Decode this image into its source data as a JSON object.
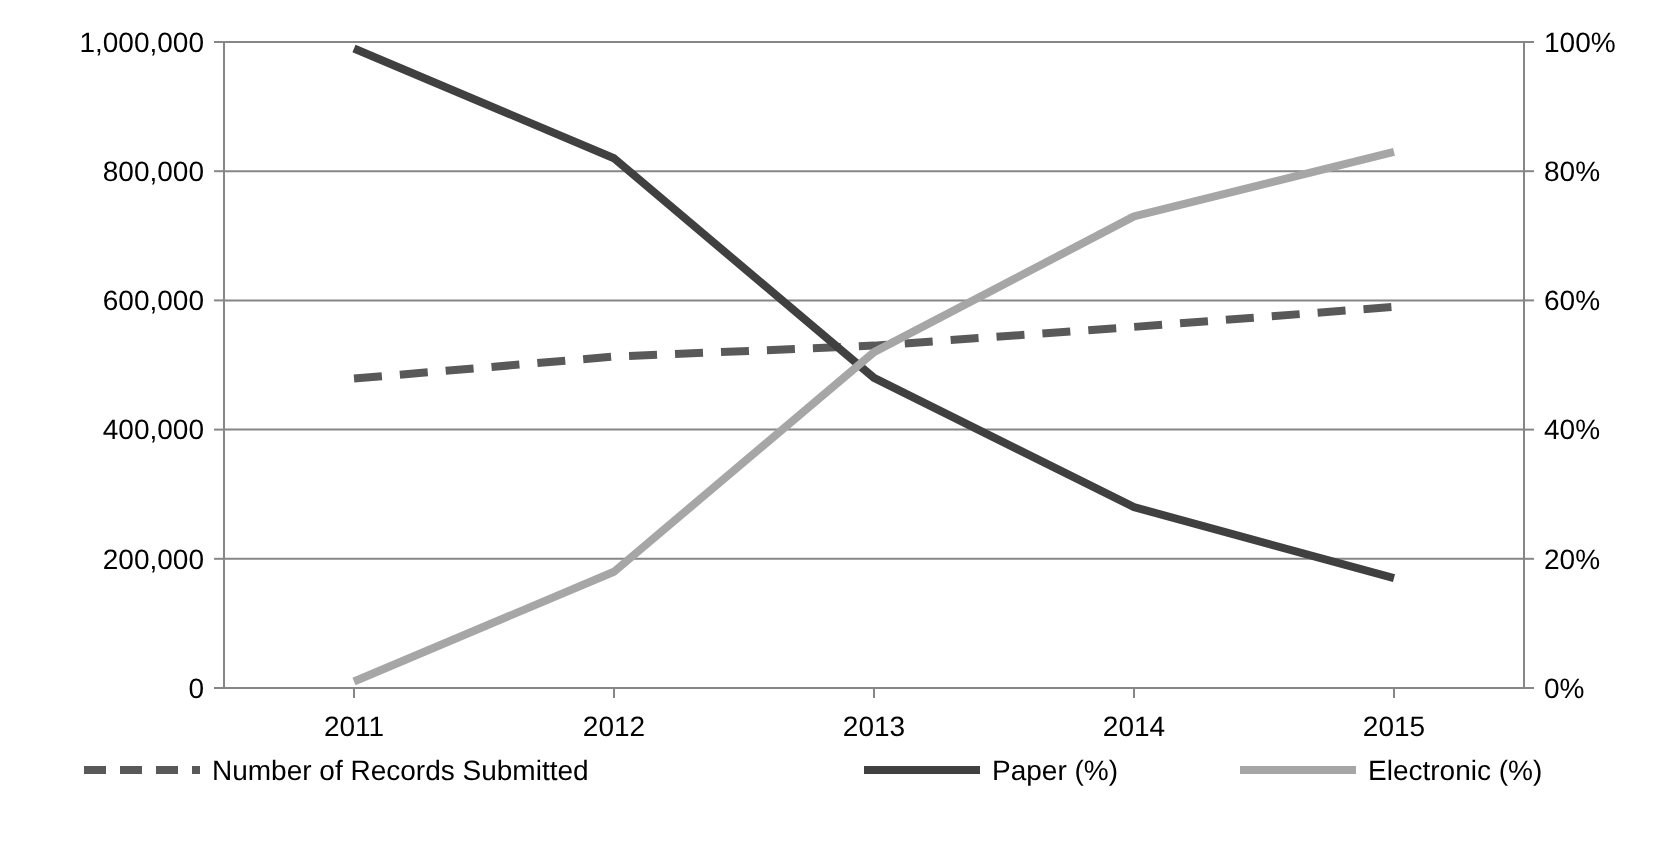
{
  "chart_data": {
    "type": "line",
    "categories": [
      "2011",
      "2012",
      "2013",
      "2014",
      "2015"
    ],
    "series": [
      {
        "name": "Number of Records Submitted",
        "color": "#595959",
        "line_style": "dashed",
        "values": [
          479000,
          513000,
          530000,
          559000,
          590000
        ]
      },
      {
        "name": "Paper (%)",
        "color": "#404040",
        "axis": "y2",
        "values": [
          99,
          82,
          48,
          28,
          17
        ]
      },
      {
        "name": "Electronic (%)",
        "color": "#a6a6a6",
        "axis": "y2",
        "values": [
          1,
          18,
          52,
          73,
          83
        ]
      }
    ],
    "ylim": [
      0,
      1000000
    ],
    "yticks": [
      {
        "value": 0,
        "label": "0"
      },
      {
        "value": 200000,
        "label": "200,000"
      },
      {
        "value": 400000,
        "label": "400,000"
      },
      {
        "value": 600000,
        "label": "600,000"
      },
      {
        "value": 800000,
        "label": "800,000"
      },
      {
        "value": 1000000,
        "label": "1,000,000"
      }
    ],
    "y2lim": [
      0,
      100
    ],
    "y2ticks": [
      {
        "value": 0,
        "label": "0%"
      },
      {
        "value": 20,
        "label": "20%"
      },
      {
        "value": 40,
        "label": "40%"
      },
      {
        "value": 60,
        "label": "60%"
      },
      {
        "value": 80,
        "label": "80%"
      },
      {
        "value": 100,
        "label": "100%"
      }
    ],
    "grid": "y",
    "legend": "bottom",
    "marker": "none"
  }
}
